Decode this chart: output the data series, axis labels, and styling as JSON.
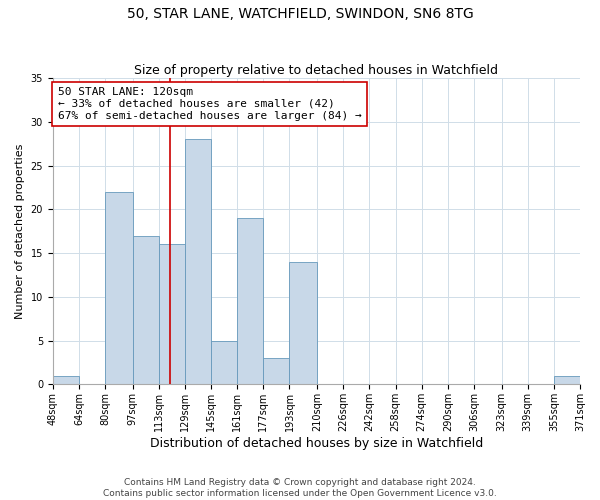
{
  "title": "50, STAR LANE, WATCHFIELD, SWINDON, SN6 8TG",
  "subtitle": "Size of property relative to detached houses in Watchfield",
  "xlabel": "Distribution of detached houses by size in Watchfield",
  "ylabel": "Number of detached properties",
  "bin_edges": [
    48,
    64,
    80,
    97,
    113,
    129,
    145,
    161,
    177,
    193,
    210,
    226,
    242,
    258,
    274,
    290,
    306,
    323,
    339,
    355,
    371
  ],
  "bin_labels": [
    "48sqm",
    "64sqm",
    "80sqm",
    "97sqm",
    "113sqm",
    "129sqm",
    "145sqm",
    "161sqm",
    "177sqm",
    "193sqm",
    "210sqm",
    "226sqm",
    "242sqm",
    "258sqm",
    "274sqm",
    "290sqm",
    "306sqm",
    "323sqm",
    "339sqm",
    "355sqm",
    "371sqm"
  ],
  "counts": [
    1,
    0,
    22,
    17,
    16,
    28,
    5,
    19,
    3,
    14,
    0,
    0,
    0,
    0,
    0,
    0,
    0,
    0,
    0,
    1
  ],
  "bar_color": "#c8d8e8",
  "bar_edge_color": "#6699bb",
  "property_line_x": 120,
  "property_line_color": "#cc0000",
  "annotation_line1": "50 STAR LANE: 120sqm",
  "annotation_line2": "← 33% of detached houses are smaller (42)",
  "annotation_line3": "67% of semi-detached houses are larger (84) →",
  "annotation_box_color": "#ffffff",
  "annotation_box_edge_color": "#cc0000",
  "ylim": [
    0,
    35
  ],
  "yticks": [
    0,
    5,
    10,
    15,
    20,
    25,
    30,
    35
  ],
  "background_color": "#ffffff",
  "grid_color": "#d0dde8",
  "footer_line1": "Contains HM Land Registry data © Crown copyright and database right 2024.",
  "footer_line2": "Contains public sector information licensed under the Open Government Licence v3.0.",
  "title_fontsize": 10,
  "subtitle_fontsize": 9,
  "xlabel_fontsize": 9,
  "ylabel_fontsize": 8,
  "tick_fontsize": 7,
  "annotation_fontsize": 8,
  "footer_fontsize": 6.5
}
